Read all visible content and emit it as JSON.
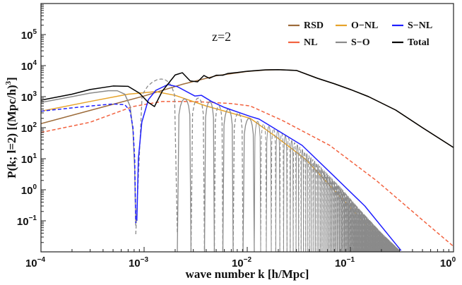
{
  "chart_data": {
    "type": "line",
    "xlabel": "wave number k [h/Mpc]",
    "ylabel": "P(k; l=2) [(Mpc/h)",
    "ylabel_exp": "3",
    "ylabel_close": "]",
    "annotation": "z=2",
    "x_scale": "log",
    "y_scale": "log",
    "xlim": [
      0.0001,
      1
    ],
    "ylim": [
      0.01,
      1000000
    ],
    "grid": false,
    "legend_position": "top-right",
    "x_ticks": [
      {
        "base": "10",
        "exp": "−4",
        "value": 0.0001
      },
      {
        "base": "10",
        "exp": "−3",
        "value": 0.001
      },
      {
        "base": "10",
        "exp": "−2",
        "value": 0.01
      },
      {
        "base": "10",
        "exp": "−1",
        "value": 0.1
      },
      {
        "base": "10",
        "exp": "0",
        "value": 1
      }
    ],
    "y_ticks": [
      {
        "base": "10",
        "exp": "−1",
        "value": 0.1
      },
      {
        "base": "10",
        "exp": "0",
        "value": 1
      },
      {
        "base": "10",
        "exp": "1",
        "value": 10
      },
      {
        "base": "10",
        "exp": "2",
        "value": 100
      },
      {
        "base": "10",
        "exp": "3",
        "value": 1000
      },
      {
        "base": "10",
        "exp": "4",
        "value": 10000
      },
      {
        "base": "10",
        "exp": "5",
        "value": 100000
      }
    ],
    "legend": [
      {
        "name": "RSD",
        "color": "#9c6b3a"
      },
      {
        "name": "O−NL",
        "color": "#e6a32a"
      },
      {
        "name": "S−NL",
        "color": "#1f1fff"
      },
      {
        "name": "NL",
        "color": "#f2623f"
      },
      {
        "name": "S−O",
        "color": "#8a8a8a"
      },
      {
        "name": "Total",
        "color": "#000000"
      }
    ],
    "series": [
      {
        "name": "RSD",
        "color": "#9c6b3a",
        "segments": [
          {
            "style": "solid",
            "points": [
              [
                0.0001,
                135
              ],
              [
                0.0003,
                360
              ],
              [
                0.001,
                1050
              ],
              [
                0.00235,
                2500
              ],
              [
                0.005,
                4700
              ],
              [
                0.01,
                6500
              ],
              [
                0.015,
                7200
              ],
              [
                0.02,
                7400
              ],
              [
                0.03,
                7000
              ],
              [
                0.048,
                3900
              ],
              [
                0.07,
                2600
              ],
              [
                0.1,
                1700
              ],
              [
                0.15,
                1000
              ],
              [
                0.275,
                370
              ],
              [
                0.5,
                100
              ],
              [
                1,
                23
              ]
            ]
          }
        ]
      },
      {
        "name": "NL",
        "color": "#f2623f",
        "segments": [
          {
            "style": "dashed",
            "points": [
              [
                0.0001,
                70
              ],
              [
                0.0003,
                150
              ],
              [
                0.00078,
                480
              ],
              [
                0.0015,
                700
              ],
              [
                0.003,
                700
              ],
              [
                0.007,
                600
              ],
              [
                0.0107,
                500
              ],
              [
                0.022,
                170
              ],
              [
                0.063,
                27
              ],
              [
                0.178,
                2
              ],
              [
                0.51,
                0.1
              ],
              [
                1,
                0.015
              ]
            ]
          }
        ]
      },
      {
        "name": "O−NL",
        "color": "#e6a32a",
        "segments": [
          {
            "style": "solid",
            "points": [
              [
                0.0001,
                340
              ],
              [
                0.0003,
                700
              ],
              [
                0.0007,
                1200
              ],
              [
                0.0013,
                1450
              ],
              [
                0.002,
                1100
              ],
              [
                0.004,
                500
              ],
              [
                0.0107,
                200
              ],
              [
                0.02,
                45
              ],
              [
                0.037,
                9.5
              ],
              [
                0.069,
                1
              ],
              [
                0.12,
                0.14
              ],
              [
                0.245,
                0.011
              ]
            ]
          }
        ]
      },
      {
        "name": "S−O",
        "color": "#8a8a8a",
        "segments": [
          {
            "style": "solid",
            "points": [
              [
                0.0001,
                650
              ],
              [
                0.0002,
                1000
              ],
              [
                0.0003,
                1300
              ],
              [
                0.00045,
                1550
              ],
              [
                0.00055,
                1550
              ],
              [
                0.00065,
                1200
              ],
              [
                0.00073,
                500
              ],
              [
                0.00078,
                80
              ],
              [
                0.00081,
                5
              ],
              [
                0.00083,
                0.07
              ]
            ]
          }
        ],
        "lobes": [
          [
            0.00083,
            0.0021,
            3700,
            "dashed"
          ],
          [
            0.0021,
            0.00285,
            850,
            "solid"
          ],
          [
            0.00285,
            0.00385,
            900,
            "dashed"
          ],
          [
            0.00385,
            0.0048,
            700,
            "solid"
          ],
          [
            0.0048,
            0.0058,
            500,
            "dashed"
          ],
          [
            0.0058,
            0.0073,
            400,
            "solid"
          ],
          [
            0.0073,
            0.0091,
            300,
            "dashed"
          ],
          [
            0.0091,
            0.0117,
            200,
            "solid"
          ]
        ],
        "dense_envelope": [
          [
            0.0117,
            180
          ],
          [
            0.02,
            80
          ],
          [
            0.03,
            30
          ],
          [
            0.05,
            6
          ],
          [
            0.08,
            1.2
          ],
          [
            0.12,
            0.25
          ],
          [
            0.2,
            0.04
          ],
          [
            0.3,
            0.011
          ]
        ]
      },
      {
        "name": "S−NL",
        "color": "#1f1fff",
        "segments": [
          {
            "style": "dashed",
            "points": [
              [
                0.0001,
                340
              ],
              [
                0.0003,
                500
              ],
              [
                0.0005,
                580
              ],
              [
                0.00065,
                550
              ],
              [
                0.00073,
                350
              ],
              [
                0.00078,
                100
              ],
              [
                0.00081,
                10
              ],
              [
                0.00083,
                0.085
              ]
            ]
          },
          {
            "style": "solid",
            "points": [
              [
                0.00085,
                0.1
              ],
              [
                0.00088,
                10
              ],
              [
                0.00095,
                150
              ],
              [
                0.0011,
                800
              ],
              [
                0.0013,
                1600
              ],
              [
                0.0017,
                2450
              ],
              [
                0.0021,
                2100
              ],
              [
                0.0031,
                1050
              ],
              [
                0.0036,
                1100
              ],
              [
                0.0045,
                700
              ],
              [
                0.006,
                450
              ],
              [
                0.0107,
                230
              ],
              [
                0.013,
                190
              ],
              [
                0.034,
                27
              ],
              [
                0.069,
                2.8
              ],
              [
                0.138,
                0.3
              ],
              [
                0.31,
                0.011
              ]
            ]
          }
        ]
      },
      {
        "name": "Total",
        "color": "#000000",
        "segments": [
          {
            "style": "solid",
            "points": [
              [
                0.0001,
                770
              ],
              [
                0.0002,
                1200
              ],
              [
                0.0003,
                1700
              ],
              [
                0.0005,
                2200
              ],
              [
                0.0007,
                2150
              ],
              [
                0.0009,
                1300
              ],
              [
                0.0011,
                650
              ],
              [
                0.00126,
                480
              ],
              [
                0.0015,
                1500
              ],
              [
                0.002,
                5000
              ],
              [
                0.00235,
                5900
              ],
              [
                0.0028,
                3200
              ],
              [
                0.0033,
                3000
              ],
              [
                0.0038,
                4800
              ],
              [
                0.0043,
                3900
              ],
              [
                0.005,
                4900
              ],
              [
                0.0058,
                4900
              ],
              [
                0.0065,
                5600
              ],
              [
                0.008,
                6000
              ],
              [
                0.01,
                6600
              ],
              [
                0.015,
                7300
              ],
              [
                0.02,
                7400
              ],
              [
                0.03,
                7000
              ],
              [
                0.048,
                3900
              ],
              [
                0.07,
                2600
              ],
              [
                0.1,
                1700
              ],
              [
                0.15,
                1000
              ],
              [
                0.275,
                370
              ],
              [
                0.5,
                100
              ],
              [
                1,
                23
              ]
            ]
          }
        ]
      }
    ]
  }
}
